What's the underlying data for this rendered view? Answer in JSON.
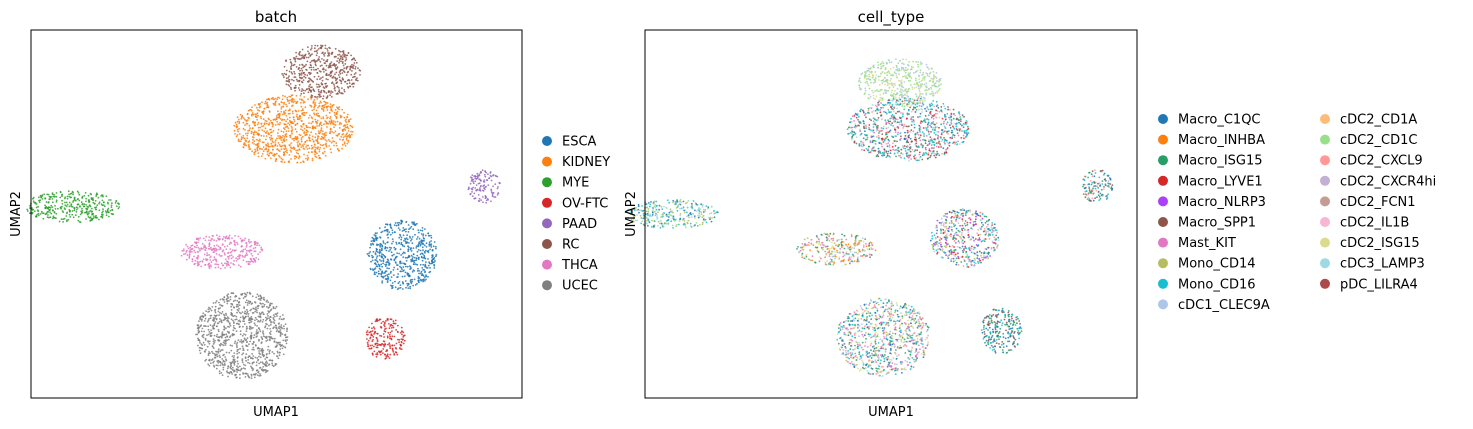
{
  "chart_data": [
    {
      "type": "scatter",
      "title": "batch",
      "xlabel": "UMAP1",
      "ylabel": "UMAP2",
      "xlim": [
        0,
        100
      ],
      "ylim": [
        0,
        100
      ],
      "grid": false,
      "legend_position": "right",
      "series": [
        {
          "name": "ESCA",
          "color": "#1f77b4",
          "clusters": [
            {
              "cx": 75.6,
              "cy": 61.1,
              "rx": 7.1,
              "ry": 9.5
            }
          ]
        },
        {
          "name": "KIDNEY",
          "color": "#ff7f0e",
          "clusters": [
            {
              "cx": 53.5,
              "cy": 26.9,
              "rx": 12.2,
              "ry": 9.2
            }
          ]
        },
        {
          "name": "MYE",
          "color": "#2ca02c",
          "clusters": [
            {
              "cx": 8.5,
              "cy": 48.0,
              "rx": 9.7,
              "ry": 4.3
            }
          ]
        },
        {
          "name": "OV-FTC",
          "color": "#d62728",
          "clusters": [
            {
              "cx": 72.2,
              "cy": 83.8,
              "rx": 4.0,
              "ry": 5.9
            }
          ]
        },
        {
          "name": "PAAD",
          "color": "#9467bd",
          "clusters": [
            {
              "cx": 92.3,
              "cy": 42.4,
              "rx": 3.3,
              "ry": 4.6
            }
          ]
        },
        {
          "name": "RC",
          "color": "#8c564b",
          "clusters": [
            {
              "cx": 59.1,
              "cy": 11.4,
              "rx": 8.0,
              "ry": 7.3
            }
          ]
        },
        {
          "name": "THCA",
          "color": "#e377c2",
          "clusters": [
            {
              "cx": 38.9,
              "cy": 60.3,
              "rx": 8.5,
              "ry": 4.6
            }
          ]
        },
        {
          "name": "UCEC",
          "color": "#7f7f7f",
          "clusters": [
            {
              "cx": 43.0,
              "cy": 83.0,
              "rx": 9.4,
              "ry": 11.9
            }
          ]
        }
      ]
    },
    {
      "type": "scatter",
      "title": "cell_type",
      "xlabel": "UMAP1",
      "ylabel": "UMAP2",
      "xlim": [
        0,
        100
      ],
      "ylim": [
        0,
        100
      ],
      "grid": false,
      "legend_position": "right",
      "series": [
        {
          "name": "Macro_C1QC",
          "color": "#1f77b4"
        },
        {
          "name": "Macro_INHBA",
          "color": "#ff7f0e"
        },
        {
          "name": "Macro_ISG15",
          "color": "#279e68"
        },
        {
          "name": "Macro_LYVE1",
          "color": "#d62728"
        },
        {
          "name": "Macro_NLRP3",
          "color": "#aa40fc"
        },
        {
          "name": "Macro_SPP1",
          "color": "#8c564b"
        },
        {
          "name": "Mast_KIT",
          "color": "#e377c2"
        },
        {
          "name": "Mono_CD14",
          "color": "#b5bd61"
        },
        {
          "name": "Mono_CD16",
          "color": "#17becf"
        },
        {
          "name": "cDC1_CLEC9A",
          "color": "#aec7e8"
        },
        {
          "name": "cDC2_CD1A",
          "color": "#ffbb78"
        },
        {
          "name": "cDC2_CD1C",
          "color": "#98df8a"
        },
        {
          "name": "cDC2_CXCL9",
          "color": "#ff9896"
        },
        {
          "name": "cDC2_CXCR4hi",
          "color": "#c5b0d5"
        },
        {
          "name": "cDC2_FCN1",
          "color": "#c49c94"
        },
        {
          "name": "cDC2_IL1B",
          "color": "#f7b6d2"
        },
        {
          "name": "cDC2_ISG15",
          "color": "#dbdb8d"
        },
        {
          "name": "cDC3_LAMP3",
          "color": "#9edae5"
        },
        {
          "name": "pDC_LILRA4",
          "color": "#ad494a"
        }
      ],
      "clusters": [
        {
          "cx": 51.8,
          "cy": 14.3,
          "rx": 8.5,
          "ry": 6.5,
          "mix": [
            11,
            16,
            9,
            11
          ]
        },
        {
          "cx": 53.5,
          "cy": 27.0,
          "rx": 12.4,
          "ry": 8.6,
          "mix": [
            8,
            17,
            0,
            2,
            8,
            3,
            12,
            6,
            5
          ]
        },
        {
          "cx": 5.5,
          "cy": 50.0,
          "rx": 9.6,
          "ry": 4.0,
          "mix": [
            17,
            7,
            8,
            0,
            11
          ]
        },
        {
          "cx": 92.0,
          "cy": 42.5,
          "rx": 3.3,
          "ry": 4.6,
          "mix": [
            0,
            8,
            5,
            2,
            12
          ]
        },
        {
          "cx": 65.0,
          "cy": 56.5,
          "rx": 7.0,
          "ry": 8.0,
          "mix": [
            0,
            3,
            4,
            8,
            2,
            7,
            12,
            9
          ]
        },
        {
          "cx": 38.8,
          "cy": 59.5,
          "rx": 8.2,
          "ry": 4.4,
          "mix": [
            7,
            1,
            6,
            16,
            9,
            2
          ]
        },
        {
          "cx": 48.5,
          "cy": 83.5,
          "rx": 9.5,
          "ry": 10.6,
          "mix": [
            0,
            8,
            7,
            2,
            6,
            16,
            12,
            9
          ]
        },
        {
          "cx": 72.4,
          "cy": 81.7,
          "rx": 4.2,
          "ry": 6.3,
          "mix": [
            0,
            8,
            5,
            2
          ]
        }
      ]
    }
  ]
}
